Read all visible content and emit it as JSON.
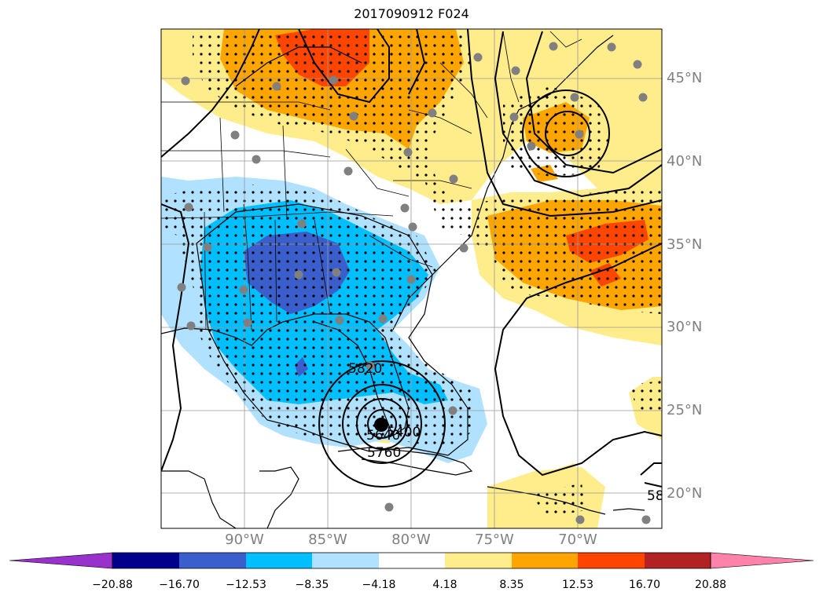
{
  "title": "2017090912 F024",
  "colors": {
    "frame": "#000000",
    "gridline": "#999999",
    "station_marker": "#808080",
    "storm_center": "#000000"
  },
  "lat_labels": [
    "45°N",
    "40°N",
    "35°N",
    "30°N",
    "25°N",
    "20°N"
  ],
  "lon_labels": [
    "90°W",
    "85°W",
    "80°W",
    "75°W",
    "70°W"
  ],
  "contour_labels": [
    "5820",
    "5640",
    "5400",
    "5760",
    "58"
  ],
  "colorbar": {
    "colors": [
      "#9932cc",
      "#00008b",
      "#3a5fcd",
      "#00bfff",
      "#b0e2ff",
      "#ffffff",
      "#ffec8b",
      "#ffa500",
      "#ff4500",
      "#b22222",
      "#ff82ab"
    ],
    "tick_labels": [
      "−20.88",
      "−16.70",
      "−12.53",
      "−8.35",
      "−4.18",
      "4.18",
      "8.35",
      "12.53",
      "16.70",
      "20.88"
    ]
  },
  "chart_data": {
    "type": "heatmap",
    "title": "2017090912 F024",
    "lat_ticks": [
      "45°N",
      "40°N",
      "35°N",
      "30°N",
      "25°N",
      "20°N"
    ],
    "lon_ticks": [
      "90°W",
      "85°W",
      "80°W",
      "75°W",
      "70°W"
    ],
    "colorbar_levels": [
      -20.88,
      -16.7,
      -12.53,
      -8.35,
      -4.18,
      4.18,
      8.35,
      12.53,
      16.7,
      20.88
    ],
    "contour_labels": [
      5820,
      5640,
      5400,
      5760
    ],
    "stippling": true,
    "grid": true
  }
}
